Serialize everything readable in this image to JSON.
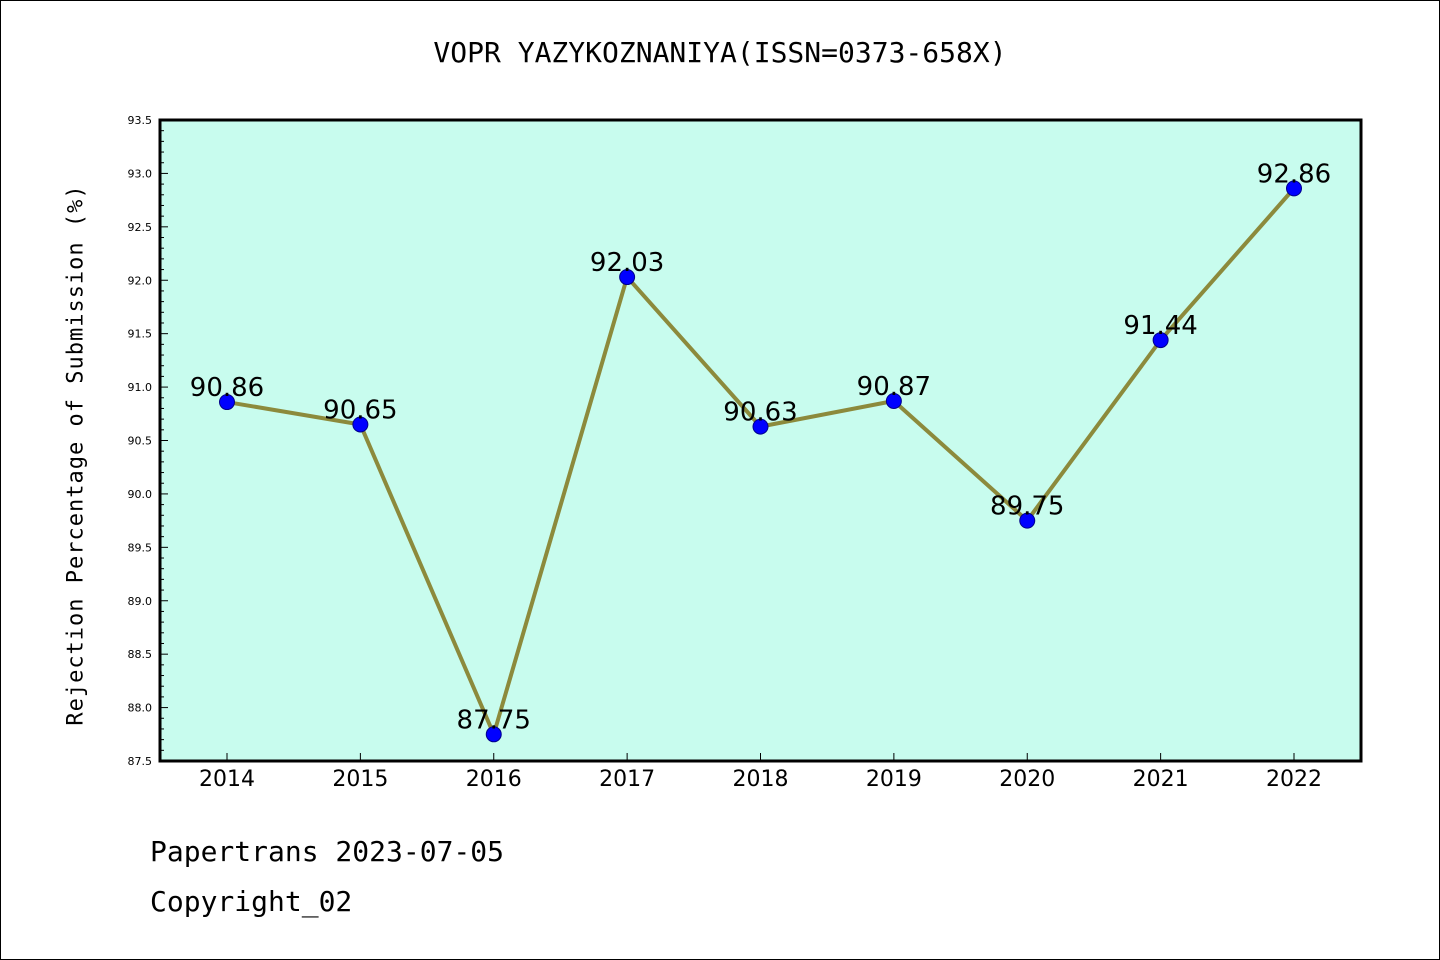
{
  "chart_data": {
    "type": "line",
    "title": "VOPR YAZYKOZNANIYA(ISSN=0373-658X)",
    "xlabel": "",
    "ylabel": "Rejection Percentage of Submission (%)",
    "categories": [
      "2014",
      "2015",
      "2016",
      "2017",
      "2018",
      "2019",
      "2020",
      "2021",
      "2022"
    ],
    "series": [
      {
        "values": [
          90.86,
          90.65,
          87.75,
          92.03,
          90.63,
          90.87,
          89.75,
          91.44,
          92.86
        ],
        "value_labels": [
          "90.86",
          "90.65",
          "87.75",
          "92.03",
          "90.63",
          "90.87",
          "89.75",
          "91.44",
          "92.86"
        ]
      }
    ],
    "ylim": [
      87.5,
      93.5
    ],
    "yticks": [
      "87.5",
      "88.0",
      "88.5",
      "89.0",
      "89.5",
      "90.0",
      "90.5",
      "91.0",
      "91.5",
      "92.0",
      "92.5",
      "93.0",
      "93.5"
    ],
    "grid": false,
    "colors": {
      "plot_background": "#c8fcee",
      "line": "#8c8a3c",
      "marker": "#0000ff"
    }
  },
  "footer": {
    "date_line": "Papertrans 2023-07-05",
    "copyright_line": "Copyright_02"
  }
}
